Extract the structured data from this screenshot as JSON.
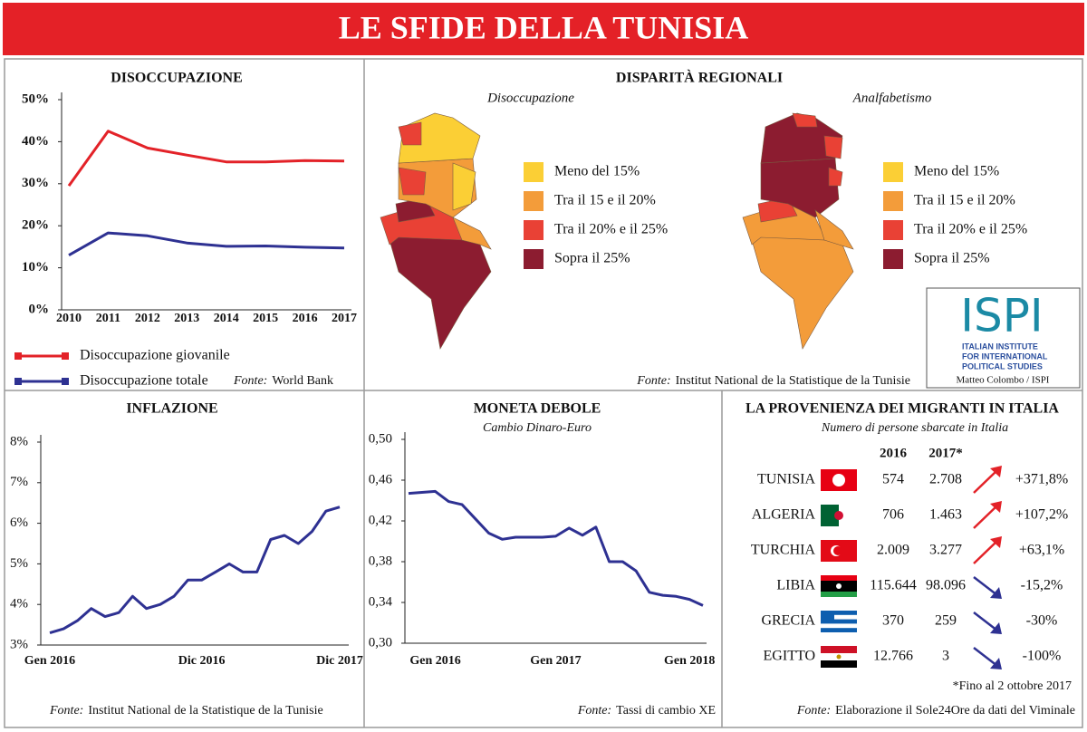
{
  "title": "LE SFIDE DELLA TUNISIA",
  "chart_data": [
    {
      "type": "line",
      "title": "DISOCCUPAZIONE",
      "categories": [
        "2010",
        "2011",
        "2012",
        "2013",
        "2014",
        "2015",
        "2016",
        "2017"
      ],
      "series": [
        {
          "name": "Disoccupazione giovanile",
          "color": "#e32228",
          "values": [
            29.5,
            42.5,
            38.5,
            36.8,
            35.2,
            35.2,
            35.5,
            35.4
          ]
        },
        {
          "name": "Disoccupazione totale",
          "color": "#2e3192",
          "values": [
            13.0,
            18.3,
            17.6,
            15.9,
            15.1,
            15.2,
            14.9,
            14.7
          ]
        }
      ],
      "ylim": [
        0,
        50
      ],
      "yticks": [
        {
          "value": 0,
          "label": "0%"
        },
        {
          "value": 10,
          "label": "10%"
        },
        {
          "value": 20,
          "label": "20%"
        },
        {
          "value": 30,
          "label": "30%"
        },
        {
          "value": 40,
          "label": "40%"
        },
        {
          "value": 50,
          "label": "50%"
        }
      ],
      "source_label": "Fonte:",
      "source": "World Bank"
    },
    {
      "type": "line",
      "title": "INFLAZIONE",
      "categories": [
        "Gen 2016",
        null,
        null,
        null,
        null,
        null,
        null,
        null,
        null,
        null,
        null,
        "Dic 2016",
        null,
        null,
        null,
        null,
        null,
        null,
        null,
        null,
        null,
        "Dic 2017"
      ],
      "color": "#2e3192",
      "values": [
        3.3,
        3.4,
        3.6,
        3.9,
        3.7,
        3.8,
        4.2,
        3.9,
        4.0,
        4.2,
        4.6,
        4.6,
        4.8,
        5.0,
        4.8,
        4.8,
        5.6,
        5.7,
        5.5,
        5.8,
        6.3,
        6.4
      ],
      "ylim": [
        3,
        8
      ],
      "yticks": [
        {
          "value": 3,
          "label": "3%"
        },
        {
          "value": 4,
          "label": "4%"
        },
        {
          "value": 5,
          "label": "5%"
        },
        {
          "value": 6,
          "label": "6%"
        },
        {
          "value": 7,
          "label": "7%"
        },
        {
          "value": 8,
          "label": "8%"
        }
      ],
      "source_label": "Fonte:",
      "source": "Institut National de la Statistique de la Tunisie"
    },
    {
      "type": "line",
      "title": "MONETA DEBOLE",
      "subtitle": "Cambio Dinaro-Euro",
      "categories": [
        null,
        null,
        "Gen 2016",
        null,
        null,
        null,
        null,
        null,
        null,
        null,
        null,
        "Gen 2017",
        null,
        null,
        null,
        null,
        null,
        null,
        null,
        null,
        null,
        "Gen 2018",
        null
      ],
      "color": "#2e3192",
      "values": [
        0.447,
        0.448,
        0.449,
        0.439,
        0.436,
        0.422,
        0.408,
        0.402,
        0.404,
        0.404,
        0.404,
        0.405,
        0.413,
        0.406,
        0.414,
        0.38,
        0.38,
        0.371,
        0.35,
        0.347,
        0.346,
        0.343,
        0.337
      ],
      "ylim": [
        0.3,
        0.5
      ],
      "yticks": [
        {
          "value": 0.3,
          "label": "0,30"
        },
        {
          "value": 0.34,
          "label": "0,34"
        },
        {
          "value": 0.38,
          "label": "0,38"
        },
        {
          "value": 0.42,
          "label": "0,42"
        },
        {
          "value": 0.46,
          "label": "0,46"
        },
        {
          "value": 0.5,
          "label": "0,50"
        }
      ],
      "source_label": "Fonte:",
      "source": "Tassi di cambio XE"
    }
  ],
  "regional": {
    "title": "DISPARITÀ REGIONALI",
    "maps": [
      "Disoccupazione",
      "Analfabetismo"
    ],
    "legend": [
      {
        "label": "Meno del 15%",
        "color": "#fbcf35"
      },
      {
        "label": "Tra il 15 e il 20%",
        "color": "#f39c3a"
      },
      {
        "label": "Tra il 20% e il 25%",
        "color": "#e94135"
      },
      {
        "label": "Sopra il 25%",
        "color": "#8c1c30"
      }
    ],
    "source_label": "Fonte:",
    "source": "Institut National de la Statistique de la Tunisie"
  },
  "logo": {
    "name": "ISPI",
    "lines": [
      "ITALIAN INSTITUTE",
      "FOR INTERNATIONAL",
      "POLITICAL STUDIES"
    ],
    "credit": "Matteo Colombo / ISPI"
  },
  "migrants": {
    "title": "LA PROVENIENZA DEI MIGRANTI IN ITALIA",
    "subtitle": "Numero di persone sbarcate in Italia",
    "columns": [
      "2016",
      "2017*"
    ],
    "rows": [
      [
        "TUNISIA",
        "574",
        "2.708",
        "+371,8%"
      ],
      [
        "ALGERIA",
        "706",
        "1.463",
        "+107,2%"
      ],
      [
        "TURCHIA",
        "2.009",
        "3.277",
        "+63,1%"
      ],
      [
        "LIBIA",
        "115.644",
        "98.096",
        "-15,2%"
      ],
      [
        "GRECIA",
        "370",
        "259",
        "-30%"
      ],
      [
        "EGITTO",
        "12.766",
        "3",
        "-100%"
      ]
    ],
    "note": "*Fino al 2 ottobre 2017",
    "source_label": "Fonte:",
    "source": "Elaborazione il Sole24Ore da dati del Viminale"
  }
}
